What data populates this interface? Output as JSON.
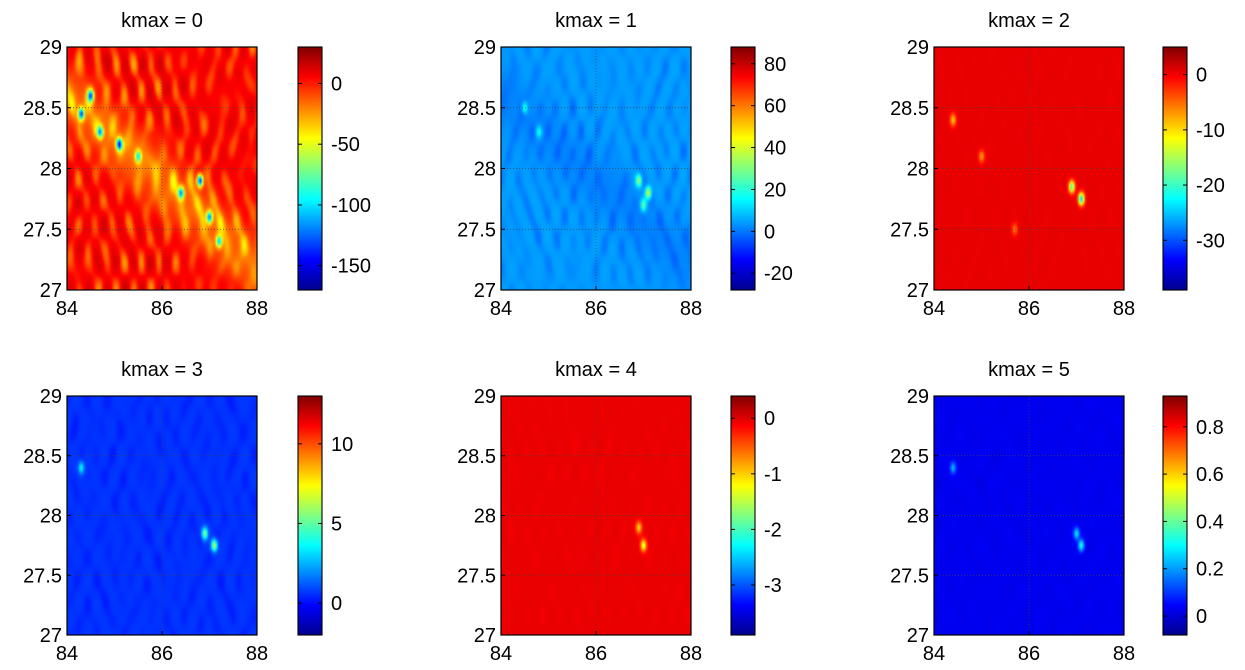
{
  "colormap": "jet",
  "colormap_stops": [
    "#00008f",
    "#0000ff",
    "#0080ff",
    "#00ffff",
    "#80ff80",
    "#ffff00",
    "#ff8000",
    "#ff0000",
    "#800000"
  ],
  "axis_color": "#000000",
  "chart_data": [
    {
      "type": "heatmap",
      "title": "kmax = 0",
      "xlim": [
        84,
        88
      ],
      "ylim": [
        27,
        29
      ],
      "xticks": [
        84,
        86,
        88
      ],
      "yticks": [
        27,
        27.5,
        28,
        28.5,
        29
      ],
      "clim": [
        -170,
        30
      ],
      "cticks": [
        -150,
        -100,
        -50,
        0
      ],
      "background": 5,
      "texture_amp": 45,
      "ridge_amp": 25,
      "hotspots": [
        [
          84.3,
          28.45,
          -120
        ],
        [
          84.5,
          28.6,
          -110
        ],
        [
          84.7,
          28.3,
          -100
        ],
        [
          85.1,
          28.2,
          -130
        ],
        [
          86.4,
          27.8,
          -100
        ],
        [
          86.8,
          27.9,
          -140
        ],
        [
          87.0,
          27.6,
          -110
        ],
        [
          87.2,
          27.4,
          -90
        ],
        [
          85.5,
          28.1,
          -80
        ]
      ]
    },
    {
      "type": "heatmap",
      "title": "kmax = 1",
      "xlim": [
        84,
        88
      ],
      "ylim": [
        27,
        29
      ],
      "xticks": [
        84,
        86,
        88
      ],
      "yticks": [
        27,
        27.5,
        28,
        28.5,
        29
      ],
      "clim": [
        -28,
        88
      ],
      "cticks": [
        -20,
        0,
        20,
        40,
        60,
        80
      ],
      "background": 4,
      "texture_amp": 8,
      "ridge_amp": 3,
      "hotspots": [
        [
          84.5,
          28.5,
          20
        ],
        [
          84.8,
          28.3,
          15
        ],
        [
          86.9,
          27.9,
          30
        ],
        [
          87.1,
          27.8,
          40
        ],
        [
          87.0,
          27.7,
          25
        ]
      ]
    },
    {
      "type": "heatmap",
      "title": "kmax = 2",
      "xlim": [
        84,
        88
      ],
      "ylim": [
        27,
        29
      ],
      "xticks": [
        84,
        86,
        88
      ],
      "yticks": [
        27,
        27.5,
        28,
        28.5,
        29
      ],
      "clim": [
        -39,
        5
      ],
      "cticks": [
        -30,
        -20,
        -10,
        0
      ],
      "background": 0.5,
      "texture_amp": 0.3,
      "ridge_amp": 0,
      "hotspots": [
        [
          84.4,
          28.4,
          -10
        ],
        [
          85.0,
          28.1,
          -8
        ],
        [
          86.9,
          27.85,
          -20
        ],
        [
          87.1,
          27.75,
          -25
        ],
        [
          85.7,
          27.5,
          -6
        ]
      ]
    },
    {
      "type": "heatmap",
      "title": "kmax = 3",
      "xlim": [
        84,
        88
      ],
      "ylim": [
        27,
        29
      ],
      "xticks": [
        84,
        86,
        88
      ],
      "yticks": [
        27,
        27.5,
        28,
        28.5,
        29
      ],
      "clim": [
        -2,
        13
      ],
      "cticks": [
        0,
        5,
        10
      ],
      "background": 0.6,
      "texture_amp": 0.6,
      "ridge_amp": 0,
      "hotspots": [
        [
          84.3,
          28.4,
          3
        ],
        [
          86.9,
          27.85,
          5
        ],
        [
          87.1,
          27.75,
          6
        ]
      ]
    },
    {
      "type": "heatmap",
      "title": "kmax = 4",
      "xlim": [
        84,
        88
      ],
      "ylim": [
        27,
        29
      ],
      "xticks": [
        84,
        86,
        88
      ],
      "yticks": [
        27,
        27.5,
        28,
        28.5,
        29
      ],
      "clim": [
        -3.9,
        0.4
      ],
      "cticks": [
        -3,
        -2,
        -1,
        0
      ],
      "background": -0.05,
      "texture_amp": 0.05,
      "ridge_amp": 0,
      "hotspots": [
        [
          86.9,
          27.9,
          -1.0
        ],
        [
          87.0,
          27.75,
          -1.4
        ]
      ]
    },
    {
      "type": "heatmap",
      "title": "kmax = 5",
      "xlim": [
        84,
        88
      ],
      "ylim": [
        27,
        29
      ],
      "xticks": [
        84,
        86,
        88
      ],
      "yticks": [
        27,
        27.5,
        28,
        28.5,
        29
      ],
      "clim": [
        -0.08,
        0.93
      ],
      "cticks": [
        0,
        0.2,
        0.4,
        0.6,
        0.8
      ],
      "background": 0.03,
      "texture_amp": 0.015,
      "ridge_amp": 0,
      "hotspots": [
        [
          84.4,
          28.4,
          0.2
        ],
        [
          87.0,
          27.85,
          0.25
        ],
        [
          87.1,
          27.75,
          0.3
        ]
      ]
    }
  ]
}
